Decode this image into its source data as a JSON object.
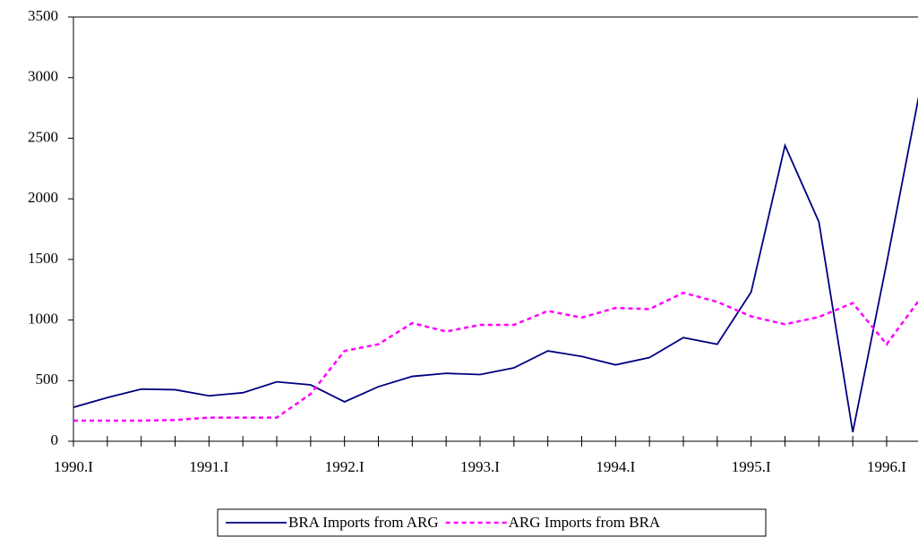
{
  "chart_data": {
    "type": "line",
    "categories": [
      "1990.I",
      null,
      null,
      null,
      "1991.I",
      null,
      null,
      null,
      "1992.I",
      null,
      null,
      null,
      "1993.I",
      null,
      null,
      null,
      "1994.I",
      null,
      null,
      null,
      "1995.I",
      null,
      null,
      null,
      "1996.I",
      null
    ],
    "series": [
      {
        "name": "BRA Imports from ARG",
        "color": "#000080",
        "dash": "solid",
        "values": [
          280,
          360,
          430,
          425,
          375,
          400,
          490,
          465,
          325,
          450,
          535,
          560,
          550,
          605,
          745,
          700,
          630,
          690,
          855,
          800,
          1230,
          2440,
          1810,
          75,
          1470,
          2920
        ]
      },
      {
        "name": "ARG Imports from BRA",
        "color": "#ff00ff",
        "dash": "dashed",
        "values": [
          170,
          170,
          170,
          175,
          195,
          195,
          195,
          390,
          745,
          800,
          975,
          905,
          960,
          960,
          1075,
          1020,
          1100,
          1090,
          1225,
          1150,
          1030,
          965,
          1025,
          1140,
          800,
          1180
        ]
      }
    ],
    "ylim": [
      0,
      3500
    ],
    "yticks": [
      0,
      500,
      1000,
      1500,
      2000,
      2500,
      3000,
      3500
    ],
    "grid": false,
    "legend": "bottom"
  }
}
